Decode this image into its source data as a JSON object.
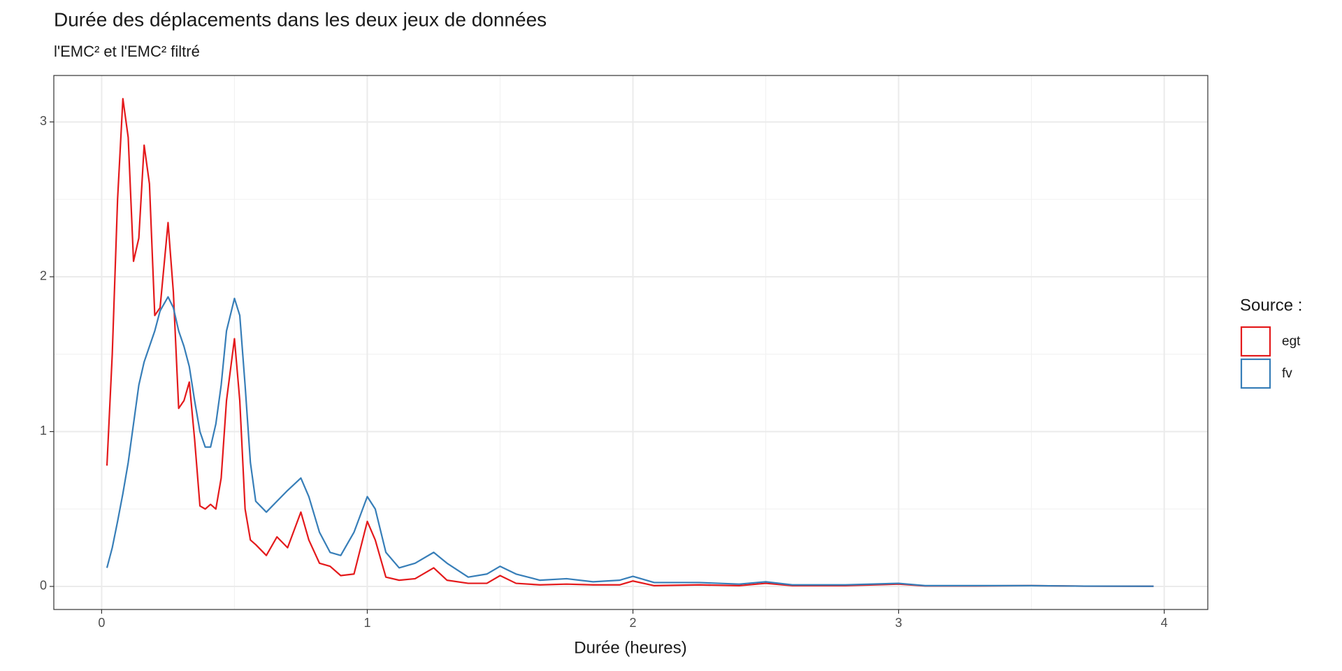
{
  "chart_data": {
    "type": "line",
    "title": "Durée des déplacements dans les deux jeux de données",
    "subtitle": "l'EMC² et l'EMC² filtré",
    "x_label": "Durée (heures)",
    "legend_title": "Source :",
    "legend_position": "right",
    "grid": true,
    "xlim": [
      -0.18,
      4.164
    ],
    "xticks": [
      0,
      1,
      2,
      3,
      4
    ],
    "ylim": [
      -0.149,
      3.3
    ],
    "yticks": [
      0,
      1,
      2,
      3
    ],
    "x": [
      0.02,
      0.04,
      0.06,
      0.08,
      0.1,
      0.12,
      0.14,
      0.16,
      0.18,
      0.2,
      0.22,
      0.25,
      0.27,
      0.29,
      0.31,
      0.33,
      0.35,
      0.37,
      0.39,
      0.41,
      0.43,
      0.45,
      0.47,
      0.5,
      0.52,
      0.54,
      0.56,
      0.58,
      0.62,
      0.66,
      0.7,
      0.75,
      0.78,
      0.82,
      0.86,
      0.9,
      0.95,
      1.0,
      1.03,
      1.07,
      1.12,
      1.18,
      1.25,
      1.3,
      1.38,
      1.45,
      1.5,
      1.56,
      1.65,
      1.75,
      1.85,
      1.95,
      2.0,
      2.08,
      2.25,
      2.4,
      2.5,
      2.6,
      2.8,
      3.0,
      3.1,
      3.25,
      3.5,
      3.7,
      3.96
    ],
    "series": [
      {
        "name": "egt",
        "color": "#e41a1c",
        "values": [
          0.78,
          1.5,
          2.5,
          3.15,
          2.9,
          2.1,
          2.25,
          2.85,
          2.6,
          1.75,
          1.8,
          2.35,
          1.9,
          1.15,
          1.2,
          1.32,
          0.95,
          0.52,
          0.5,
          0.53,
          0.5,
          0.7,
          1.2,
          1.6,
          1.2,
          0.5,
          0.3,
          0.27,
          0.2,
          0.32,
          0.25,
          0.48,
          0.3,
          0.15,
          0.13,
          0.07,
          0.08,
          0.42,
          0.3,
          0.06,
          0.04,
          0.05,
          0.12,
          0.04,
          0.02,
          0.02,
          0.07,
          0.02,
          0.01,
          0.015,
          0.01,
          0.01,
          0.035,
          0.005,
          0.01,
          0.005,
          0.02,
          0.005,
          0.005,
          0.015,
          0.003,
          0.003,
          0.005,
          0.002,
          0.001
        ]
      },
      {
        "name": "fv",
        "color": "#377eb8",
        "values": [
          0.12,
          0.25,
          0.42,
          0.6,
          0.8,
          1.05,
          1.3,
          1.45,
          1.55,
          1.65,
          1.78,
          1.87,
          1.8,
          1.65,
          1.55,
          1.42,
          1.2,
          1.0,
          0.9,
          0.9,
          1.05,
          1.3,
          1.65,
          1.86,
          1.75,
          1.3,
          0.8,
          0.55,
          0.48,
          0.55,
          0.62,
          0.7,
          0.58,
          0.35,
          0.22,
          0.2,
          0.35,
          0.58,
          0.5,
          0.22,
          0.12,
          0.15,
          0.22,
          0.15,
          0.06,
          0.08,
          0.13,
          0.08,
          0.04,
          0.05,
          0.03,
          0.04,
          0.065,
          0.025,
          0.025,
          0.015,
          0.03,
          0.01,
          0.01,
          0.02,
          0.005,
          0.005,
          0.005,
          0.002,
          0.001
        ]
      }
    ]
  }
}
